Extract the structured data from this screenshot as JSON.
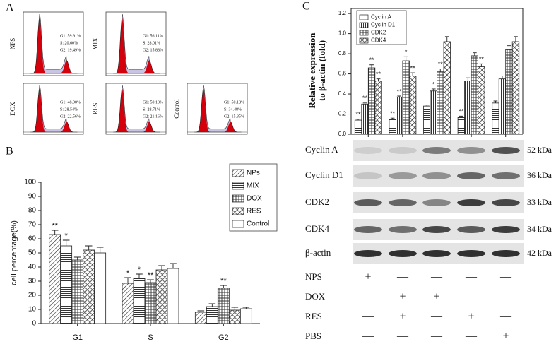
{
  "panel_a": {
    "label": "A",
    "plots": [
      {
        "sample": "NPS",
        "lines": [
          "G1: 59.91%",
          "S: 20.60%",
          "G2: 19.49%"
        ]
      },
      {
        "sample": "MIX",
        "lines": [
          "G1: 56.11%",
          "S: 28.01%",
          "G2: 15.88%"
        ]
      },
      {
        "sample": "DOX",
        "lines": [
          "G1: 48.90%",
          "S: 28.54%",
          "G2: 22.56%"
        ]
      },
      {
        "sample": "RES",
        "lines": [
          "G1: 50.13%",
          "S: 28.71%",
          "G2: 21.16%"
        ]
      },
      {
        "sample": "Control",
        "lines": [
          "G1: 50.18%",
          "S: 34.48%",
          "G2: 15.35%"
        ]
      }
    ]
  },
  "chart_data": [
    {
      "type": "bar",
      "panel_label": "B",
      "y_label": "cell percentage(%)",
      "categories": [
        "G1",
        "S",
        "G2"
      ],
      "ylim": [
        0,
        100
      ],
      "yticks": [
        0,
        10,
        20,
        30,
        40,
        50,
        60,
        70,
        80,
        90,
        100
      ],
      "legend": "upper right",
      "series": [
        {
          "name": "NPs",
          "pattern": "diagonal",
          "values": [
            63,
            28.5,
            8
          ],
          "errors": [
            3,
            4,
            1
          ],
          "annotations": [
            "**",
            "*",
            null
          ]
        },
        {
          "name": "MIX",
          "pattern": "horizontal",
          "values": [
            55,
            32,
            12
          ],
          "errors": [
            4,
            3,
            2
          ],
          "annotations": [
            "*",
            "*",
            null
          ]
        },
        {
          "name": "DOX",
          "pattern": "cross",
          "values": [
            45,
            29,
            25
          ],
          "errors": [
            2,
            2,
            2
          ],
          "annotations": [
            null,
            "**",
            "**"
          ]
        },
        {
          "name": "RES",
          "pattern": "diamond",
          "values": [
            52,
            38,
            9.5
          ],
          "errors": [
            3,
            3,
            2
          ],
          "annotations": [
            null,
            null,
            null
          ]
        },
        {
          "name": "Control",
          "pattern": "none",
          "values": [
            50,
            39,
            10.5
          ],
          "errors": [
            4,
            3.5,
            1
          ],
          "annotations": [
            null,
            null,
            null
          ]
        }
      ]
    },
    {
      "type": "bar",
      "panel_label": "C",
      "y_label": [
        "Relative expression",
        "to β-actin (fold)"
      ],
      "categories": [
        null,
        null,
        null,
        null,
        null
      ],
      "ylim": [
        0,
        1.25
      ],
      "yticks": [
        {
          "value": 0,
          "label": "0.0"
        },
        0.2,
        0.4,
        0.6,
        0.8,
        {
          "value": 1,
          "label": "1.0"
        },
        1.2
      ],
      "legend": "upper left",
      "series": [
        {
          "name": "Cyclin A",
          "pattern": "horizontal",
          "values": [
            0.14,
            0.15,
            0.28,
            0.17,
            0.31
          ],
          "errors": [
            0.01,
            0.01,
            0.01,
            0.01,
            0.02
          ],
          "annotations": [
            "**",
            "**",
            null,
            "**",
            null
          ]
        },
        {
          "name": "Cyclin D1",
          "pattern": "vertical",
          "values": [
            0.3,
            0.37,
            0.43,
            0.53,
            0.55
          ],
          "errors": [
            0.01,
            0.01,
            0.02,
            0.03,
            0.03
          ],
          "annotations": [
            "**",
            "**",
            "*",
            null,
            null
          ]
        },
        {
          "name": "CDK2",
          "pattern": "cross",
          "values": [
            0.66,
            0.73,
            0.62,
            0.78,
            0.84
          ],
          "errors": [
            0.03,
            0.04,
            0.03,
            0.03,
            0.04
          ],
          "annotations": [
            "**",
            "*",
            "**",
            null,
            null
          ]
        },
        {
          "name": "CDK4",
          "pattern": "diamond",
          "values": [
            0.53,
            0.58,
            0.92,
            0.67,
            0.92
          ],
          "errors": [
            0.02,
            0.03,
            0.05,
            0.03,
            0.05
          ],
          "annotations": [
            "**",
            "**",
            null,
            "**",
            null
          ]
        }
      ]
    }
  ],
  "blot": {
    "rows": [
      {
        "protein": "Cyclin A",
        "size": "52 kDa"
      },
      {
        "protein": "Cyclin D1",
        "size": "36 kDa"
      },
      {
        "protein": "CDK2",
        "size": "33 kDa"
      },
      {
        "protein": "CDK4",
        "size": "34 kDa"
      },
      {
        "protein": "β-actin",
        "size": "42 kDa"
      }
    ]
  },
  "treatments": [
    {
      "label": "NPS",
      "signs": [
        "+",
        "—",
        "—",
        "—",
        "—"
      ]
    },
    {
      "label": "DOX",
      "signs": [
        "—",
        "+",
        "+",
        "—",
        "—"
      ]
    },
    {
      "label": "RES",
      "signs": [
        "—",
        "+",
        "—",
        "+",
        "—"
      ]
    },
    {
      "label": "PBS",
      "signs": [
        "—",
        "—",
        "—",
        "—",
        "+"
      ]
    }
  ]
}
